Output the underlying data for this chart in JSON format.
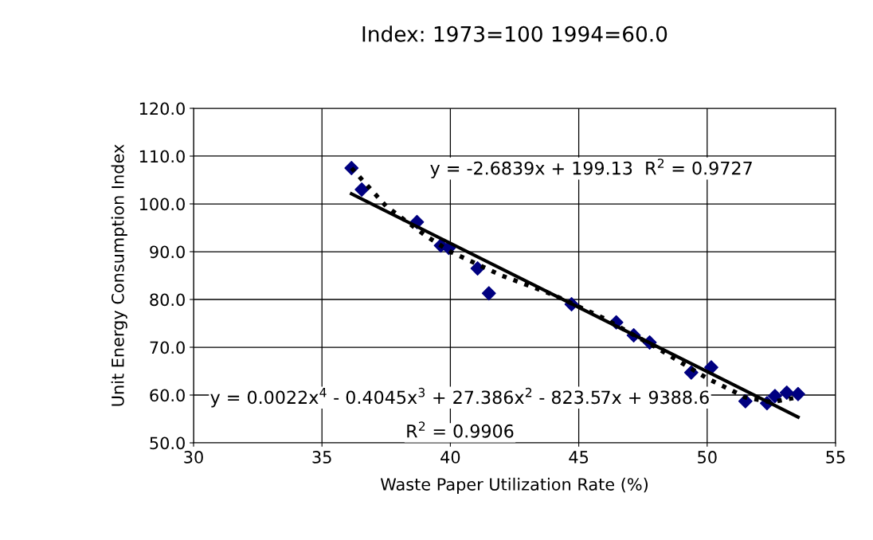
{
  "chart_data": {
    "type": "scatter",
    "title": "Index: 1973=100 1994=60.0",
    "xlabel": "Waste Paper Utilization Rate (%)",
    "ylabel": "Unit Energy Consumption Index",
    "xlim": [
      30,
      55
    ],
    "xticks": [
      30,
      35,
      40,
      45,
      50,
      55
    ],
    "ylim": [
      50,
      120
    ],
    "yticks": [
      {
        "value": 50,
        "label": "50.0"
      },
      {
        "value": 60,
        "label": "60.0"
      },
      {
        "value": 70,
        "label": "70.0"
      },
      {
        "value": 80,
        "label": "80.0"
      },
      {
        "value": 90,
        "label": "90.0"
      },
      {
        "value": 100,
        "label": "100.0"
      },
      {
        "value": 110,
        "label": "110.0"
      },
      {
        "value": 120,
        "label": "120.0"
      }
    ],
    "grid": true,
    "legend": false,
    "series": [
      {
        "color": "#000080",
        "marker": "diamond",
        "x": [
          36.15,
          36.55,
          38.7,
          39.63,
          39.94,
          41.06,
          41.5,
          44.72,
          46.46,
          47.14,
          47.76,
          49.38,
          50.16,
          51.49,
          52.33,
          52.64,
          53.1,
          53.54
        ],
        "values": [
          107.5,
          103.0,
          96.2,
          91.3,
          90.8,
          86.5,
          81.3,
          79.0,
          75.2,
          72.5,
          71.0,
          64.7,
          65.8,
          58.7,
          58.3,
          59.8,
          60.5,
          60.2
        ]
      },
      {
        "type": "line",
        "color": "#000000",
        "line_style": "solid",
        "marker": "none",
        "x": [
          36.15,
          53.54
        ],
        "values": [
          102.1,
          55.4
        ]
      },
      {
        "type": "line",
        "color": "#000000",
        "line_style": "dotted",
        "marker": "none",
        "x": [
          36.15,
          37.5,
          39,
          40,
          42,
          44,
          46,
          48,
          50,
          51.5,
          52.5,
          53.5
        ],
        "values": [
          107.5,
          99.5,
          93.5,
          90,
          85,
          81,
          76,
          70,
          63.5,
          59.5,
          58.5,
          59.5
        ]
      }
    ],
    "annotations": [
      "y = -2.6839x + 199.13  R$^{2}$ = 0.9727",
      "y = 0.0022x$^{4}$ - 0.4045x$^{3}$ + 27.386x$^{2}$ - 823.57x + 9388.6",
      "R$^{2}$ = 0.9906"
    ]
  }
}
